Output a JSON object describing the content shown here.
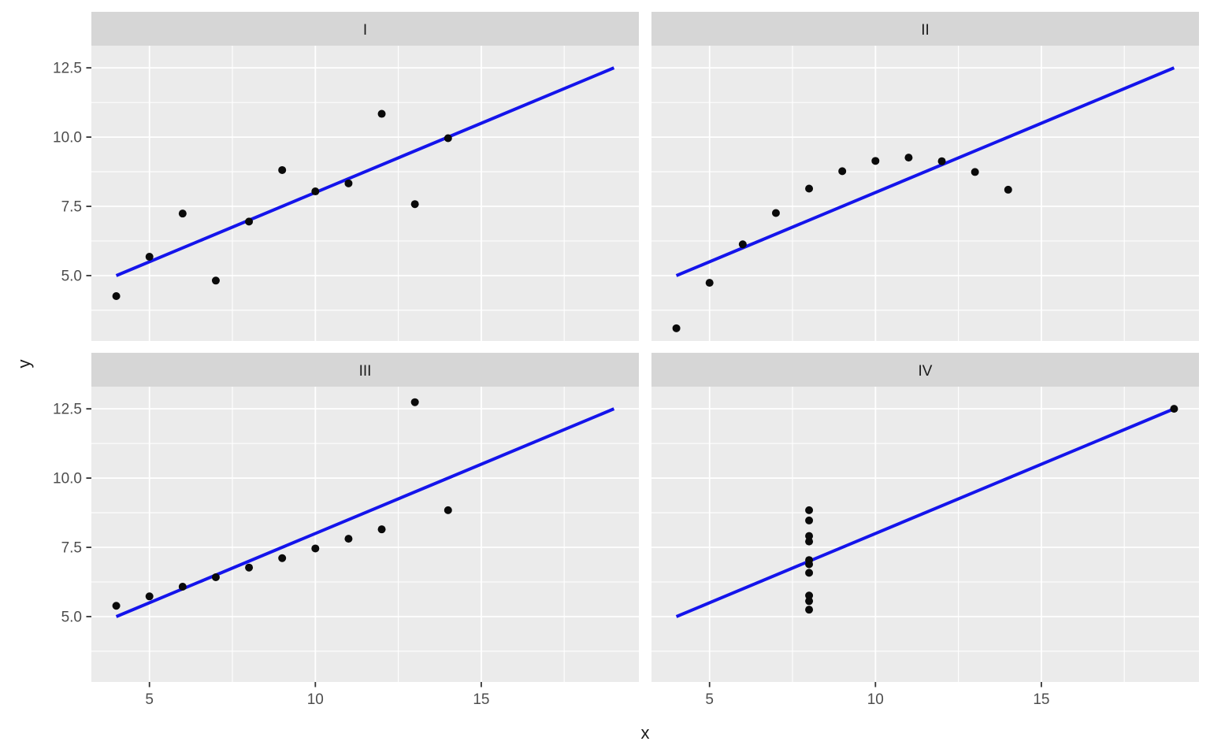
{
  "figure": {
    "xlabel": "x",
    "ylabel": "y"
  },
  "chart_data": {
    "type": "scatter",
    "title": "",
    "xlabel": "x",
    "ylabel": "y",
    "legend": "none",
    "grid": "white major and minor gridlines on gray panels",
    "facet_layout": "2x2 wrap, shared axes",
    "xlim": [
      3.25,
      19.75
    ],
    "ylim": [
      2.64,
      13.3
    ],
    "x_ticks": {
      "values": [
        5,
        10,
        15
      ],
      "labels": [
        "5",
        "10",
        "15"
      ]
    },
    "y_ticks": {
      "values": [
        5,
        7.5,
        10,
        12.5
      ],
      "labels": [
        "5.0",
        "7.5",
        "10.0",
        "12.5"
      ]
    },
    "x_minor": [
      7.5,
      12.5,
      17.5
    ],
    "y_minor": [
      3.75,
      6.25,
      8.75,
      11.25
    ],
    "trend_line": {
      "slope": 0.5,
      "intercept": 3.0,
      "x_start": 4,
      "y_start": 5.0,
      "x_end": 19,
      "y_end": 12.5
    },
    "facets": [
      {
        "label": "I",
        "points": [
          [
            10,
            8.04
          ],
          [
            8,
            6.95
          ],
          [
            13,
            7.58
          ],
          [
            9,
            8.81
          ],
          [
            11,
            8.33
          ],
          [
            14,
            9.96
          ],
          [
            6,
            7.24
          ],
          [
            4,
            4.26
          ],
          [
            12,
            10.84
          ],
          [
            7,
            4.82
          ],
          [
            5,
            5.68
          ]
        ]
      },
      {
        "label": "II",
        "points": [
          [
            10,
            9.14
          ],
          [
            8,
            8.14
          ],
          [
            13,
            8.74
          ],
          [
            9,
            8.77
          ],
          [
            11,
            9.26
          ],
          [
            14,
            8.1
          ],
          [
            6,
            6.13
          ],
          [
            4,
            3.1
          ],
          [
            12,
            9.13
          ],
          [
            7,
            7.26
          ],
          [
            5,
            4.74
          ]
        ]
      },
      {
        "label": "III",
        "points": [
          [
            10,
            7.46
          ],
          [
            8,
            6.77
          ],
          [
            13,
            12.74
          ],
          [
            9,
            7.11
          ],
          [
            11,
            7.81
          ],
          [
            14,
            8.84
          ],
          [
            6,
            6.08
          ],
          [
            4,
            5.39
          ],
          [
            12,
            8.15
          ],
          [
            7,
            6.42
          ],
          [
            5,
            5.73
          ]
        ]
      },
      {
        "label": "IV",
        "points": [
          [
            8,
            6.58
          ],
          [
            8,
            5.76
          ],
          [
            8,
            7.71
          ],
          [
            8,
            8.84
          ],
          [
            8,
            8.47
          ],
          [
            8,
            7.04
          ],
          [
            8,
            5.25
          ],
          [
            19,
            12.5
          ],
          [
            8,
            5.56
          ],
          [
            8,
            7.91
          ],
          [
            8,
            6.89
          ]
        ]
      }
    ],
    "colors": {
      "background": "#FFFFFF",
      "panel_bg": "#EBEBEB",
      "strip_bg": "#D6D6D6",
      "grid": "#FFFFFF",
      "point": "#0A0A0A",
      "line": "#1414EB",
      "axis_text": "#4D4D4D",
      "axis_title": "#1A1A1A",
      "strip_text": "#1A1A1A",
      "tick_mark": "#333333"
    }
  }
}
